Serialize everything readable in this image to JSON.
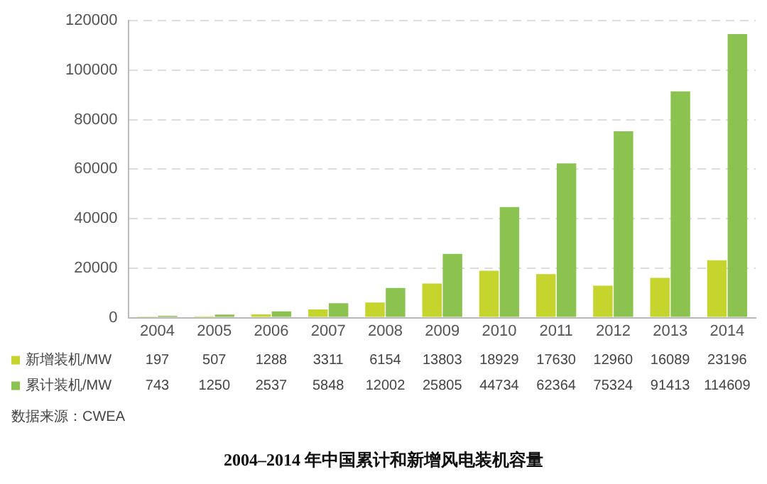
{
  "chart_data": {
    "type": "bar",
    "title": "2004–2014 年中国累计和新增风电装机容量",
    "categories": [
      "2004",
      "2005",
      "2006",
      "2007",
      "2008",
      "2009",
      "2010",
      "2011",
      "2012",
      "2013",
      "2014"
    ],
    "series": [
      {
        "name": "新增装机/MW",
        "color": "#c5d52e",
        "values": [
          197,
          507,
          1288,
          3311,
          6154,
          13803,
          18929,
          17630,
          12960,
          16089,
          23196
        ]
      },
      {
        "name": "累计装机/MW",
        "color": "#8cc350",
        "values": [
          743,
          1250,
          2537,
          5848,
          12002,
          25805,
          44734,
          62364,
          75324,
          91413,
          114609
        ]
      }
    ],
    "ylim": [
      0,
      120000
    ],
    "yticks": [
      0,
      20000,
      40000,
      60000,
      80000,
      100000,
      120000
    ],
    "grid": "y",
    "legend": "bottom",
    "data_labels": true,
    "annotations": [
      "数据来源：CWEA"
    ]
  }
}
